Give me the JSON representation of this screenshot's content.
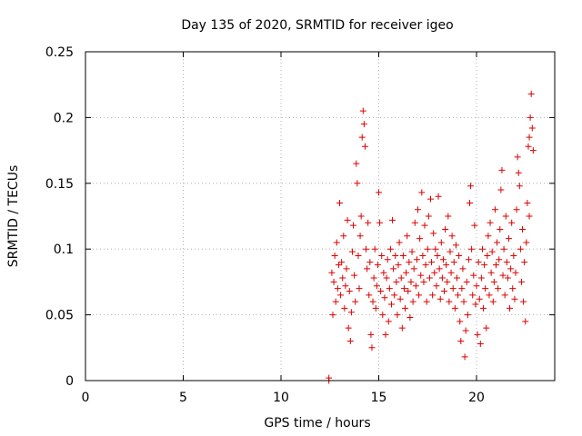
{
  "chart_data": {
    "type": "scatter",
    "title": "Day 135 of 2020, SRMTID for receiver igeo",
    "xlabel": "GPS time / hours",
    "ylabel": "SRMTID / TECUs",
    "xlim": [
      0,
      24
    ],
    "ylim": [
      0,
      0.25
    ],
    "xticks": [
      0,
      5,
      10,
      15,
      20
    ],
    "xtick_labels": [
      "0",
      "5",
      "10",
      "15",
      "20"
    ],
    "yticks": [
      0,
      0.05,
      0.1,
      0.15,
      0.2,
      0.25
    ],
    "ytick_labels": [
      "0",
      "0.05",
      "0.1",
      "0.15",
      "0.2",
      "0.25"
    ],
    "grid": true,
    "marker": "+",
    "color": "#dd0000",
    "series": [
      {
        "name": "SRMTID",
        "points": [
          [
            12.45,
            0.0
          ],
          [
            12.45,
            0.002
          ],
          [
            12.6,
            0.082
          ],
          [
            12.65,
            0.05
          ],
          [
            12.7,
            0.075
          ],
          [
            12.75,
            0.095
          ],
          [
            12.8,
            0.06
          ],
          [
            12.85,
            0.105
          ],
          [
            12.9,
            0.07
          ],
          [
            12.95,
            0.088
          ],
          [
            13.0,
            0.135
          ],
          [
            13.05,
            0.065
          ],
          [
            13.1,
            0.09
          ],
          [
            13.15,
            0.078
          ],
          [
            13.2,
            0.11
          ],
          [
            13.25,
            0.055
          ],
          [
            13.3,
            0.072
          ],
          [
            13.35,
            0.085
          ],
          [
            13.4,
            0.122
          ],
          [
            13.45,
            0.04
          ],
          [
            13.5,
            0.068
          ],
          [
            13.55,
            0.03
          ],
          [
            13.6,
            0.052
          ],
          [
            13.65,
            0.098
          ],
          [
            13.7,
            0.118
          ],
          [
            13.75,
            0.08
          ],
          [
            13.8,
            0.06
          ],
          [
            13.85,
            0.165
          ],
          [
            13.9,
            0.15
          ],
          [
            13.95,
            0.095
          ],
          [
            14.0,
            0.07
          ],
          [
            14.05,
            0.11
          ],
          [
            14.1,
            0.125
          ],
          [
            14.15,
            0.185
          ],
          [
            14.2,
            0.205
          ],
          [
            14.25,
            0.195
          ],
          [
            14.3,
            0.178
          ],
          [
            14.35,
            0.1
          ],
          [
            14.4,
            0.085
          ],
          [
            14.45,
            0.12
          ],
          [
            14.5,
            0.065
          ],
          [
            14.55,
            0.09
          ],
          [
            14.6,
            0.035
          ],
          [
            14.65,
            0.025
          ],
          [
            14.7,
            0.06
          ],
          [
            14.75,
            0.078
          ],
          [
            14.8,
            0.1
          ],
          [
            14.85,
            0.055
          ],
          [
            14.9,
            0.072
          ],
          [
            14.95,
            0.088
          ],
          [
            15.0,
            0.143
          ],
          [
            15.05,
            0.12
          ],
          [
            15.1,
            0.068
          ],
          [
            15.15,
            0.095
          ],
          [
            15.2,
            0.05
          ],
          [
            15.25,
            0.082
          ],
          [
            15.3,
            0.063
          ],
          [
            15.35,
            0.035
          ],
          [
            15.4,
            0.078
          ],
          [
            15.45,
            0.092
          ],
          [
            15.5,
            0.045
          ],
          [
            15.55,
            0.07
          ],
          [
            15.6,
            0.1
          ],
          [
            15.65,
            0.058
          ],
          [
            15.7,
            0.122
          ],
          [
            15.75,
            0.085
          ],
          [
            15.8,
            0.065
          ],
          [
            15.85,
            0.095
          ],
          [
            15.9,
            0.075
          ],
          [
            15.95,
            0.05
          ],
          [
            16.0,
            0.088
          ],
          [
            16.05,
            0.105
          ],
          [
            16.1,
            0.062
          ],
          [
            16.15,
            0.078
          ],
          [
            16.2,
            0.04
          ],
          [
            16.25,
            0.095
          ],
          [
            16.3,
            0.07
          ],
          [
            16.35,
            0.055
          ],
          [
            16.4,
            0.082
          ],
          [
            16.45,
            0.11
          ],
          [
            16.5,
            0.068
          ],
          [
            16.55,
            0.09
          ],
          [
            16.6,
            0.048
          ],
          [
            16.65,
            0.075
          ],
          [
            16.7,
            0.098
          ],
          [
            16.75,
            0.06
          ],
          [
            16.8,
            0.085
          ],
          [
            16.85,
            0.12
          ],
          [
            16.9,
            0.072
          ],
          [
            16.95,
            0.092
          ],
          [
            17.0,
            0.13
          ],
          [
            17.05,
            0.065
          ],
          [
            17.1,
            0.108
          ],
          [
            17.15,
            0.08
          ],
          [
            17.2,
            0.143
          ],
          [
            17.25,
            0.095
          ],
          [
            17.3,
            0.075
          ],
          [
            17.35,
            0.118
          ],
          [
            17.4,
            0.088
          ],
          [
            17.45,
            0.06
          ],
          [
            17.5,
            0.1
          ],
          [
            17.55,
            0.125
          ],
          [
            17.6,
            0.078
          ],
          [
            17.65,
            0.138
          ],
          [
            17.7,
            0.09
          ],
          [
            17.75,
            0.065
          ],
          [
            17.8,
            0.112
          ],
          [
            17.85,
            0.082
          ],
          [
            17.9,
            0.1
          ],
          [
            17.95,
            0.072
          ],
          [
            18.0,
            0.095
          ],
          [
            18.05,
            0.14
          ],
          [
            18.1,
            0.085
          ],
          [
            18.15,
            0.062
          ],
          [
            18.2,
            0.105
          ],
          [
            18.25,
            0.078
          ],
          [
            18.3,
            0.092
          ],
          [
            18.35,
            0.068
          ],
          [
            18.4,
            0.115
          ],
          [
            18.45,
            0.088
          ],
          [
            18.5,
            0.075
          ],
          [
            18.55,
            0.125
          ],
          [
            18.6,
            0.06
          ],
          [
            18.65,
            0.098
          ],
          [
            18.7,
            0.082
          ],
          [
            18.75,
            0.11
          ],
          [
            18.8,
            0.07
          ],
          [
            18.85,
            0.09
          ],
          [
            18.9,
            0.055
          ],
          [
            18.95,
            0.103
          ],
          [
            19.0,
            0.078
          ],
          [
            19.05,
            0.065
          ],
          [
            19.1,
            0.095
          ],
          [
            19.15,
            0.045
          ],
          [
            19.2,
            0.03
          ],
          [
            19.25,
            0.07
          ],
          [
            19.3,
            0.085
          ],
          [
            19.35,
            0.06
          ],
          [
            19.4,
            0.018
          ],
          [
            19.45,
            0.038
          ],
          [
            19.5,
            0.075
          ],
          [
            19.55,
            0.05
          ],
          [
            19.6,
            0.092
          ],
          [
            19.65,
            0.135
          ],
          [
            19.7,
            0.148
          ],
          [
            19.75,
            0.1
          ],
          [
            19.8,
            0.065
          ],
          [
            19.85,
            0.08
          ],
          [
            19.9,
            0.118
          ],
          [
            19.95,
            0.058
          ],
          [
            20.0,
            0.072
          ],
          [
            20.05,
            0.035
          ],
          [
            20.1,
            0.09
          ],
          [
            20.15,
            0.062
          ],
          [
            20.2,
            0.028
          ],
          [
            20.25,
            0.078
          ],
          [
            20.3,
            0.1
          ],
          [
            20.35,
            0.055
          ],
          [
            20.4,
            0.088
          ],
          [
            20.45,
            0.07
          ],
          [
            20.5,
            0.04
          ],
          [
            20.55,
            0.095
          ],
          [
            20.6,
            0.11
          ],
          [
            20.65,
            0.065
          ],
          [
            20.7,
            0.12
          ],
          [
            20.75,
            0.082
          ],
          [
            20.8,
            0.098
          ],
          [
            20.85,
            0.06
          ],
          [
            20.9,
            0.075
          ],
          [
            20.95,
            0.13
          ],
          [
            21.0,
            0.088
          ],
          [
            21.05,
            0.105
          ],
          [
            21.1,
            0.07
          ],
          [
            21.15,
            0.092
          ],
          [
            21.2,
            0.115
          ],
          [
            21.25,
            0.145
          ],
          [
            21.3,
            0.16
          ],
          [
            21.35,
            0.08
          ],
          [
            21.4,
            0.1
          ],
          [
            21.45,
            0.065
          ],
          [
            21.5,
            0.125
          ],
          [
            21.55,
            0.09
          ],
          [
            21.6,
            0.078
          ],
          [
            21.65,
            0.108
          ],
          [
            21.7,
            0.055
          ],
          [
            21.75,
            0.085
          ],
          [
            21.8,
            0.12
          ],
          [
            21.85,
            0.07
          ],
          [
            21.9,
            0.095
          ],
          [
            21.95,
            0.062
          ],
          [
            22.0,
            0.082
          ],
          [
            22.05,
            0.13
          ],
          [
            22.1,
            0.17
          ],
          [
            22.15,
            0.158
          ],
          [
            22.2,
            0.148
          ],
          [
            22.25,
            0.1
          ],
          [
            22.3,
            0.075
          ],
          [
            22.35,
            0.115
          ],
          [
            22.4,
            0.06
          ],
          [
            22.45,
            0.09
          ],
          [
            22.5,
            0.045
          ],
          [
            22.55,
            0.105
          ],
          [
            22.6,
            0.135
          ],
          [
            22.65,
            0.178
          ],
          [
            22.7,
            0.185
          ],
          [
            22.75,
            0.2
          ],
          [
            22.8,
            0.218
          ],
          [
            22.85,
            0.192
          ],
          [
            22.9,
            0.175
          ],
          [
            22.7,
            0.125
          ]
        ]
      }
    ]
  }
}
